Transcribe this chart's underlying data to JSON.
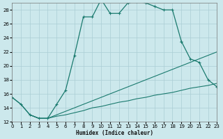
{
  "background_color": "#cce8ec",
  "grid_color": "#aacdd4",
  "line_color": "#1a7a6e",
  "xlabel": "Humidex (Indice chaleur)",
  "xlim": [
    0,
    23
  ],
  "ylim": [
    12,
    29
  ],
  "xticks": [
    0,
    1,
    2,
    3,
    4,
    5,
    6,
    7,
    8,
    9,
    10,
    11,
    12,
    13,
    14,
    15,
    16,
    17,
    18,
    19,
    20,
    21,
    22,
    23
  ],
  "yticks": [
    12,
    14,
    16,
    18,
    20,
    22,
    24,
    26,
    28
  ],
  "main_x": [
    0,
    1,
    2,
    3,
    4,
    5,
    6,
    7,
    8,
    9,
    10,
    11,
    12,
    13,
    14,
    15,
    16,
    17,
    18,
    19
  ],
  "main_y": [
    15.5,
    14.5,
    13.0,
    12.5,
    12.5,
    14.5,
    16.5,
    21.5,
    27.0,
    27.0,
    29.5,
    27.5,
    27.5,
    29.0,
    29.2,
    29.0,
    28.5,
    28.0,
    28.0,
    23.5
  ],
  "tail_x": [
    19,
    20,
    21,
    22,
    23
  ],
  "tail_y": [
    23.5,
    21.0,
    20.5,
    18.0,
    17.0
  ],
  "low1_x": [
    0,
    1,
    2,
    3,
    4,
    5,
    6,
    7,
    8,
    9,
    10,
    11,
    12,
    13,
    14,
    15,
    16,
    17,
    18,
    19,
    20,
    21,
    22,
    23
  ],
  "low1_y": [
    15.5,
    14.5,
    13.0,
    12.5,
    12.5,
    13.0,
    13.5,
    14.0,
    14.5,
    15.0,
    15.5,
    16.0,
    16.5,
    17.0,
    17.5,
    18.0,
    18.5,
    19.0,
    19.5,
    20.0,
    20.5,
    21.0,
    21.5,
    22.0
  ],
  "low2_x": [
    2,
    3,
    4,
    5,
    6,
    7,
    8,
    9,
    10,
    11,
    12,
    13,
    14,
    15,
    16,
    17,
    18,
    19,
    20,
    21,
    22,
    23
  ],
  "low2_y": [
    13.0,
    12.5,
    12.5,
    12.8,
    13.0,
    13.3,
    13.6,
    14.0,
    14.2,
    14.5,
    14.8,
    15.0,
    15.3,
    15.5,
    15.8,
    16.0,
    16.2,
    16.5,
    16.8,
    17.0,
    17.2,
    17.5
  ]
}
